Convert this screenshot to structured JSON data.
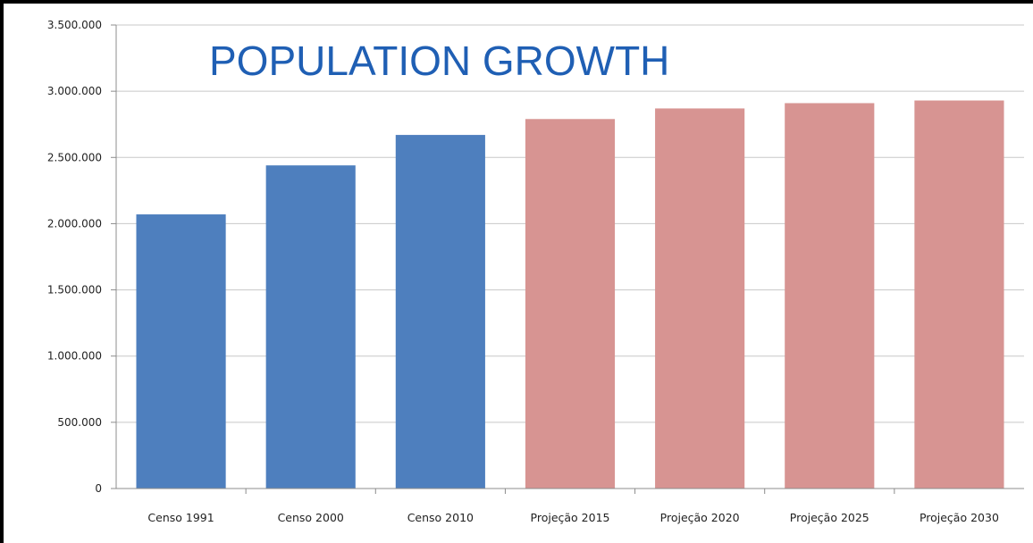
{
  "chart_data": {
    "type": "bar",
    "title": "POPULATION GROWTH",
    "categories": [
      "Censo 1991",
      "Censo 2000",
      "Censo 2010",
      "Projeção 2015",
      "Projeção 2020",
      "Projeção 2025",
      "Projeção 2030"
    ],
    "values": [
      2070000,
      2440000,
      2670000,
      2790000,
      2870000,
      2910000,
      2930000
    ],
    "bar_colors": [
      "#4e7fbe",
      "#4e7fbe",
      "#4e7fbe",
      "#d79492",
      "#d79492",
      "#d79492",
      "#d79492"
    ],
    "ylim": [
      0,
      3500000
    ],
    "ytick_values": [
      0,
      500000,
      1000000,
      1500000,
      2000000,
      2500000,
      3000000,
      3500000
    ],
    "ytick_labels": [
      "0",
      "500.000",
      "1.000.000",
      "1.500.000",
      "2.000.000",
      "2.500.000",
      "3.000.000",
      "3.500.000"
    ],
    "grid": true,
    "legend": "none"
  },
  "colors": {
    "title": "#1f5fb4",
    "censo": "#4e7fbe",
    "projecao": "#d79492",
    "grid": "#c8c8c8"
  }
}
